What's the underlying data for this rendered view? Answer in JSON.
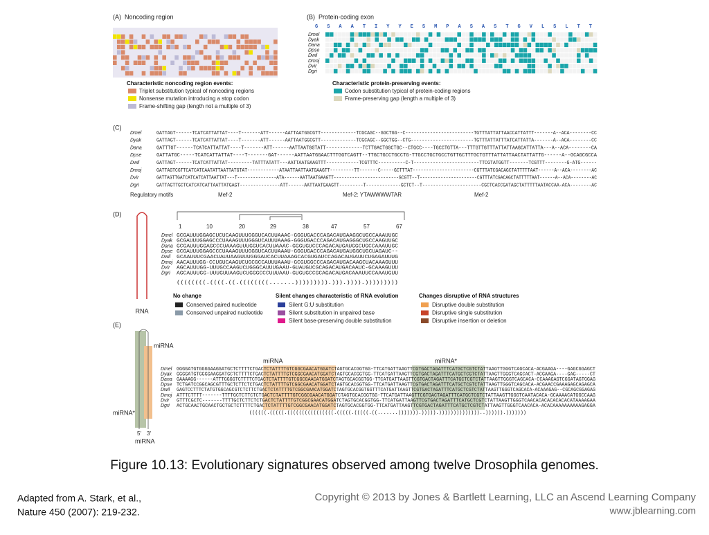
{
  "figure": {
    "panel_a": {
      "label": "(A)",
      "title": "Noncoding region",
      "legend_title": "Characteristic noncoding region events:",
      "legend": [
        {
          "text": "Triplet substitution typical of noncoding regions",
          "color": "#d98a6a"
        },
        {
          "text": "Nonsense mutation introducing a stop codon",
          "color": "#f1e400"
        },
        {
          "text": "Frame-shifting gap (length not a multiple of 3)",
          "color": "#bcbad6"
        }
      ]
    },
    "panel_b": {
      "label": "(B)",
      "title": "Protein-coding exon",
      "amino_acids": "G S A A T I Y Y E S M P A S A S T G V L S L T T",
      "species": [
        "Dmel",
        "Dyak",
        "Dana",
        "Dpse",
        "Dwil",
        "Dmoj",
        "Dvir",
        "Dgri"
      ],
      "legend_title": "Characteristic protein-preserving events:",
      "legend": [
        {
          "text": "Codon substitution typical of protein-coding regions",
          "color": "#1aa5aa"
        },
        {
          "text": "Frame-preserving gap (length a multiple of 3)",
          "color": "#dcd7bc"
        }
      ]
    },
    "panel_c": {
      "label": "(C)",
      "species": [
        "Dmel",
        "Dyak",
        "Dana",
        "Dpse",
        "Dwil",
        "Dmoj",
        "Dvir",
        "Dgri"
      ],
      "rows": [
        "GATTAGT------TCATCATTATTAT----T-------ATT------AATTAATGGCGTT-------------TCGCAGC--GGCTGG--C-------------------------TGTTTATTATTAACCATTATTT-------A--ACA--------CC",
        "GATTAGT------TCATCATTATTAT----T-------ATT------AATTAATGGCGTT-------------TCGCAGC--GGCTGG--CTG-----------------------TGTTTATTATTTATCATTATTA-------A--ACA--------CC",
        "GATTTGT------TCATCATTATTAT----T-------ATT------AATTAATGGTATT-------------TCTTGACTGGCTGC--CTGCC----TGCCTGTTA---TTTGTTGTTTATTATTAAGCATTATTA---A--ACA--------CA",
        "GATTATGC-----TCATCATTATTAT----T-------GAT------AATTAATGGAACTTTGGTCAGTT--TTGCTGCCTGCCTG-TTGCCTGCTGCCTGTTGCTTTGCTGTTTATTATTAACTATTATTG------A--GCAGCGCCA",
        "GATTAGT------TCATCATTATTAT---------TATTTATATT---AATTAATGAAGTTT------------TCGTTTC----------C-T------------------------TTCGTATGGTT-------TCGTTT--------G-ATG------",
        "GATTAGTCGTTCATCATCAATATTAATTATGTAT------------ATAATTAATTAATGAAGTT---------TT-------C-----GCTTTAT-----------------------CGTTTATCGACAGCTATTTTTAAT------A--ACA--------AC",
        "GATTAGTTGATCATCATCATTAATTAT---T---------------ATA------AATTAATGAAGTT-------------------------GCGTT--T----------------------CGTTTATCGACAGCTATTTTTAAT------A--ACA--------AC",
        "GATTAGTTGCTCATCATCATTAATTATGAGT---------------ATT------AATTAATGAAGTT---------T-------------GCTCT--T----------------------CGCTCACCGATAGCTATTTTTAATACCAA-ACA--------AC"
      ],
      "footer": "Regulatory motifs",
      "motifs": [
        "Mef-2",
        "Mef-2: YTAWWWWTAR",
        "Mef-2"
      ]
    },
    "panel_d": {
      "label": "(D)",
      "positions": [
        1,
        10,
        20,
        29,
        38,
        47,
        57,
        67
      ],
      "species": [
        "Dmel",
        "Dyak",
        "Dana",
        "Dpse",
        "Dwil",
        "Dmoj",
        "Dvir",
        "Dgri"
      ],
      "rows": [
        "GCGAUUUGGAGCUCUCAAGUUUGGGUCACUUAAAC-GGGUGACCCAGACAUGAAGGCUGCCAAAUUGC",
        "GCGAUUUGGAGCCCUAAAGUUUGGGUCAUUUAAAG-GGGUGACCCAGACAUGAGGGCUGCCAAGUUGC",
        "GCGAUUUGGAGCCCUAAAGUUUGGUCACUUAAAC-GGGUGUCCCAGACAUGAUGGCUGCCAAAUUGC",
        "GCGAUUUGGAGCCCUAAAGUUUGGGUCACUUAAAU-GGGUGACCCAGACAUGAUGGCUGCUAGAUC--",
        "GCAAUUUCGAACUAUUAAGUUUGGGAUCACUUAAAGCACGUGAUCCAGACAUGAUUCUGAGAUUUG",
        "AACAUUUGG-CCUGUCAAGUCUGCGCCAUUUAAAU-GCGUGGCCCAGACAUGACAAGCUACAAAGUUU",
        "AGCAUUUGG-UUUGCCAAGUCUGGGCAUUUGAAU-GUAUGUCGCAGACAUGACAAUC-GCAAAGUUU",
        "AGCAUUUGG-UUUGUUAAGUCUGGGCCCUUUAAU-GUGUGCCGCAGACAUGACAAAUUCCAAAUGUU"
      ],
      "structure": "((((((((.((((.((.((((((((.......))))))))).))).)))).)))))))))",
      "rna_label": "RNA",
      "legend_groups": [
        {
          "title": "No change",
          "items": [
            {
              "text": "Conserved paired nucleotide",
              "color": "#222222"
            },
            {
              "text": "Conserved unpaired nucleotide",
              "color": "#8a9aa8"
            }
          ]
        },
        {
          "title": "Silent changes characteristic of RNA evolution",
          "items": [
            {
              "text": "Silent G:U substitution",
              "color": "#2b3f9a"
            },
            {
              "text": "Silent substitution in unpaired base",
              "color": "#9a4fa0"
            },
            {
              "text": "Silent base-preserving double substitution",
              "color": "#e0198c"
            }
          ]
        },
        {
          "title": "Changes disruptive of RNA structures",
          "items": [
            {
              "text": "Disruptive double substitution",
              "color": "#f0a050"
            },
            {
              "text": "Disruptive single substitution",
              "color": "#c8442a"
            },
            {
              "text": "Disruptive insertion or deletion",
              "color": "#8a4a2a"
            }
          ]
        }
      ]
    },
    "panel_e": {
      "label": "(E)",
      "mirna": "miRNA",
      "mirna_star": "miRNA*",
      "five_prime": "5'",
      "three_prime": "3'",
      "species": [
        "Dmel",
        "Dyak",
        "Dana",
        "Dpse",
        "Dwil",
        "Dmoj",
        "Dvir",
        "Dgri"
      ],
      "rows": [
        "GGGGATGTGGGGAAGGATGCTCTTTTCTGACTCTATTTTGTCGGCGAACATGGATCTAGTGCACGGTGG-TTCATGATTAAGTTCGTGACTAGATTTCATGCTCGTCTATTAAGTTGGGTCAGCACA-ACGAAGA----GAGCGGAGCT",
        "GGGGATGTGGGGAAGGATGCTCTTTTCTGACTCTATTTTGTCGGCGAACATGGATCTAGTGCACGGTGG-TTCATGATTAAGTTCGTGACTAGATTTCATGCTCGTCTATTAAGTTGGGTCAGCACT-ACGAAGA----GAG-----CT",
        "GAAAAGG------ATTTGGGGTCTTTTCTGACTCTATTTTGTCGGCGAACATGGATCTAGTGCACGGTGG-TTCATGATTAAGTTCGTGACTAGATTTCATGCTCGTCTATTAAGTTGGGTCAGCACA-CCAAAGAGTCGGATAGTGGAG",
        "TCTGATCCGGCAGCGTTTGCTCTTCTCTGACTCTATTTTGTCGGCGAACATGGATCTAGTGCACGGTGG-TTCATGATTAAGTTCGTGACTAGATTTCATGCTCGTCTATTAAGTTGGGTCAGCACA-ACGAACCGAAAGAGCAGAGCA",
        "GAGTCCTTTCTATGTGGCAGCGTCTCTTCTGACTCTATTTTGTCGGCGAACATGGATCTAGTGCACGGTGGTTTCATGATTAAGTTCGTGACTAGATTTCATGCTCGTCTATTAAGTTGGGTCAGCACA-ACAAAGAG--CGCAGCGGAGAG",
        "ATTTCTTTT-------TTTTGCTCTTCTCTGACTCTATTTTGTCGGCGAACATGGATCTAGTGCACGGTGG-TTCATGATTAAGTTCGTGACTAGATTTCATGCTCGTCTATTAAGTTGGGTCAATACACA-GCAAAACATGGCCAAG",
        "GTTTCGCTC-------TTTTGCTCTTCTCTGACTCTATTTTGTCGGCGAACATGGATCTAGTGCACGGTGG-TTCATGATTAAGTTCGTGACTAGATTTCATGCTCGTCTATTAAGTTGGGTCAACACACACACACACATAAAAGAA",
        "ACTGCAACTGCAACTGCTGCTCTTTTCTGACTCTATTTTGTCGGCGAACATGGATCTAGTGCACGGTGG-TTCATGATTAAGTTCGTGACTAGATTTCATGCTCGTCTATTAAGTTGGGTCAACACA-ACACAAAAAAAAAAGAGGA"
      ],
      "structure": "((((((.(((((.((((((((((((((((.(((((.(((((.((.......))))))).))))).))))))))))))))..)))))).)))))))"
    }
  },
  "caption": "Figure 10.13: Evolutionary signatures observed among twelve Drosophila genomes.",
  "source": [
    "Adapted from A. Stark, et al.,",
    "Nature 450 (2007): 219-232."
  ],
  "copyright": "Copyright © 2013 by Jones & Bartlett Learning, LLC an Ascend Learning Company",
  "website": "www.jblearning.com"
}
